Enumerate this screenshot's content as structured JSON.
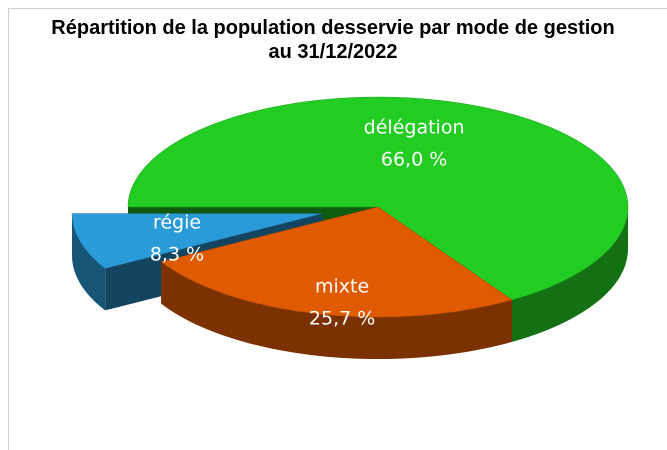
{
  "chart_data": {
    "type": "pie3d",
    "title": "Répartition de la population desservie par mode de gestion au 31/12/2022",
    "categories": [
      "délégation",
      "mixte",
      "régie"
    ],
    "values": [
      66.0,
      25.7,
      8.3
    ],
    "value_labels": [
      "66,0 %",
      "25,7 %",
      "8,3 %"
    ],
    "colors": [
      "#22cc22",
      "#e05a00",
      "#2a9ad8"
    ],
    "exploded": [
      false,
      false,
      true
    ]
  }
}
